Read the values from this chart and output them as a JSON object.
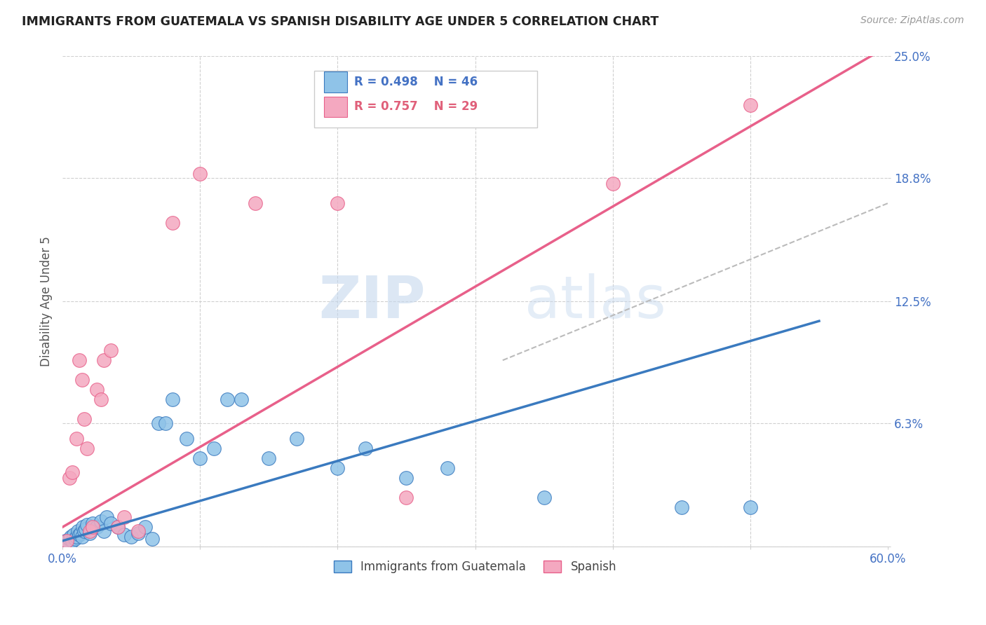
{
  "title": "IMMIGRANTS FROM GUATEMALA VS SPANISH DISABILITY AGE UNDER 5 CORRELATION CHART",
  "source": "Source: ZipAtlas.com",
  "ylabel": "Disability Age Under 5",
  "ytick_values": [
    0.0,
    6.3,
    12.5,
    18.8,
    25.0
  ],
  "xlim": [
    0.0,
    60.0
  ],
  "ylim": [
    0.0,
    25.0
  ],
  "color_blue": "#8fc3e8",
  "color_pink": "#f4a8c0",
  "color_blue_line": "#3a7abf",
  "color_pink_line": "#e8608a",
  "color_dashed": "#bbbbbb",
  "watermark_zip": "ZIP",
  "watermark_atlas": "atlas",
  "guatemala_points": [
    [
      0.2,
      0.3
    ],
    [
      0.4,
      0.2
    ],
    [
      0.5,
      0.4
    ],
    [
      0.6,
      0.5
    ],
    [
      0.7,
      0.3
    ],
    [
      0.8,
      0.6
    ],
    [
      0.9,
      0.4
    ],
    [
      1.0,
      0.5
    ],
    [
      1.1,
      0.8
    ],
    [
      1.2,
      0.6
    ],
    [
      1.3,
      0.7
    ],
    [
      1.4,
      0.5
    ],
    [
      1.5,
      1.0
    ],
    [
      1.6,
      0.8
    ],
    [
      1.7,
      0.9
    ],
    [
      1.8,
      1.1
    ],
    [
      2.0,
      0.7
    ],
    [
      2.2,
      1.2
    ],
    [
      2.5,
      1.0
    ],
    [
      2.8,
      1.3
    ],
    [
      3.0,
      0.8
    ],
    [
      3.2,
      1.5
    ],
    [
      3.5,
      1.2
    ],
    [
      4.0,
      1.0
    ],
    [
      4.5,
      0.6
    ],
    [
      5.0,
      0.5
    ],
    [
      5.5,
      0.7
    ],
    [
      6.0,
      1.0
    ],
    [
      6.5,
      0.4
    ],
    [
      7.0,
      6.3
    ],
    [
      7.5,
      6.3
    ],
    [
      8.0,
      7.5
    ],
    [
      9.0,
      5.5
    ],
    [
      10.0,
      4.5
    ],
    [
      11.0,
      5.0
    ],
    [
      12.0,
      7.5
    ],
    [
      13.0,
      7.5
    ],
    [
      15.0,
      4.5
    ],
    [
      17.0,
      5.5
    ],
    [
      20.0,
      4.0
    ],
    [
      22.0,
      5.0
    ],
    [
      25.0,
      3.5
    ],
    [
      28.0,
      4.0
    ],
    [
      35.0,
      2.5
    ],
    [
      45.0,
      2.0
    ],
    [
      50.0,
      2.0
    ]
  ],
  "spanish_points": [
    [
      0.3,
      0.3
    ],
    [
      0.5,
      3.5
    ],
    [
      0.7,
      3.8
    ],
    [
      1.0,
      5.5
    ],
    [
      1.2,
      9.5
    ],
    [
      1.4,
      8.5
    ],
    [
      1.6,
      6.5
    ],
    [
      1.8,
      5.0
    ],
    [
      2.0,
      0.8
    ],
    [
      2.2,
      1.0
    ],
    [
      2.5,
      8.0
    ],
    [
      2.8,
      7.5
    ],
    [
      3.0,
      9.5
    ],
    [
      3.5,
      10.0
    ],
    [
      4.0,
      1.0
    ],
    [
      4.5,
      1.5
    ],
    [
      5.5,
      0.8
    ],
    [
      8.0,
      16.5
    ],
    [
      10.0,
      19.0
    ],
    [
      14.0,
      17.5
    ],
    [
      20.0,
      17.5
    ],
    [
      25.0,
      2.5
    ],
    [
      40.0,
      18.5
    ],
    [
      50.0,
      22.5
    ]
  ],
  "gt_line_x": [
    0.0,
    55.0
  ],
  "gt_line_y": [
    0.3,
    11.5
  ],
  "sp_line_x": [
    0.0,
    60.0
  ],
  "sp_line_y": [
    1.0,
    25.5
  ],
  "dash_line_x": [
    32.0,
    60.0
  ],
  "dash_line_y": [
    9.5,
    17.5
  ]
}
